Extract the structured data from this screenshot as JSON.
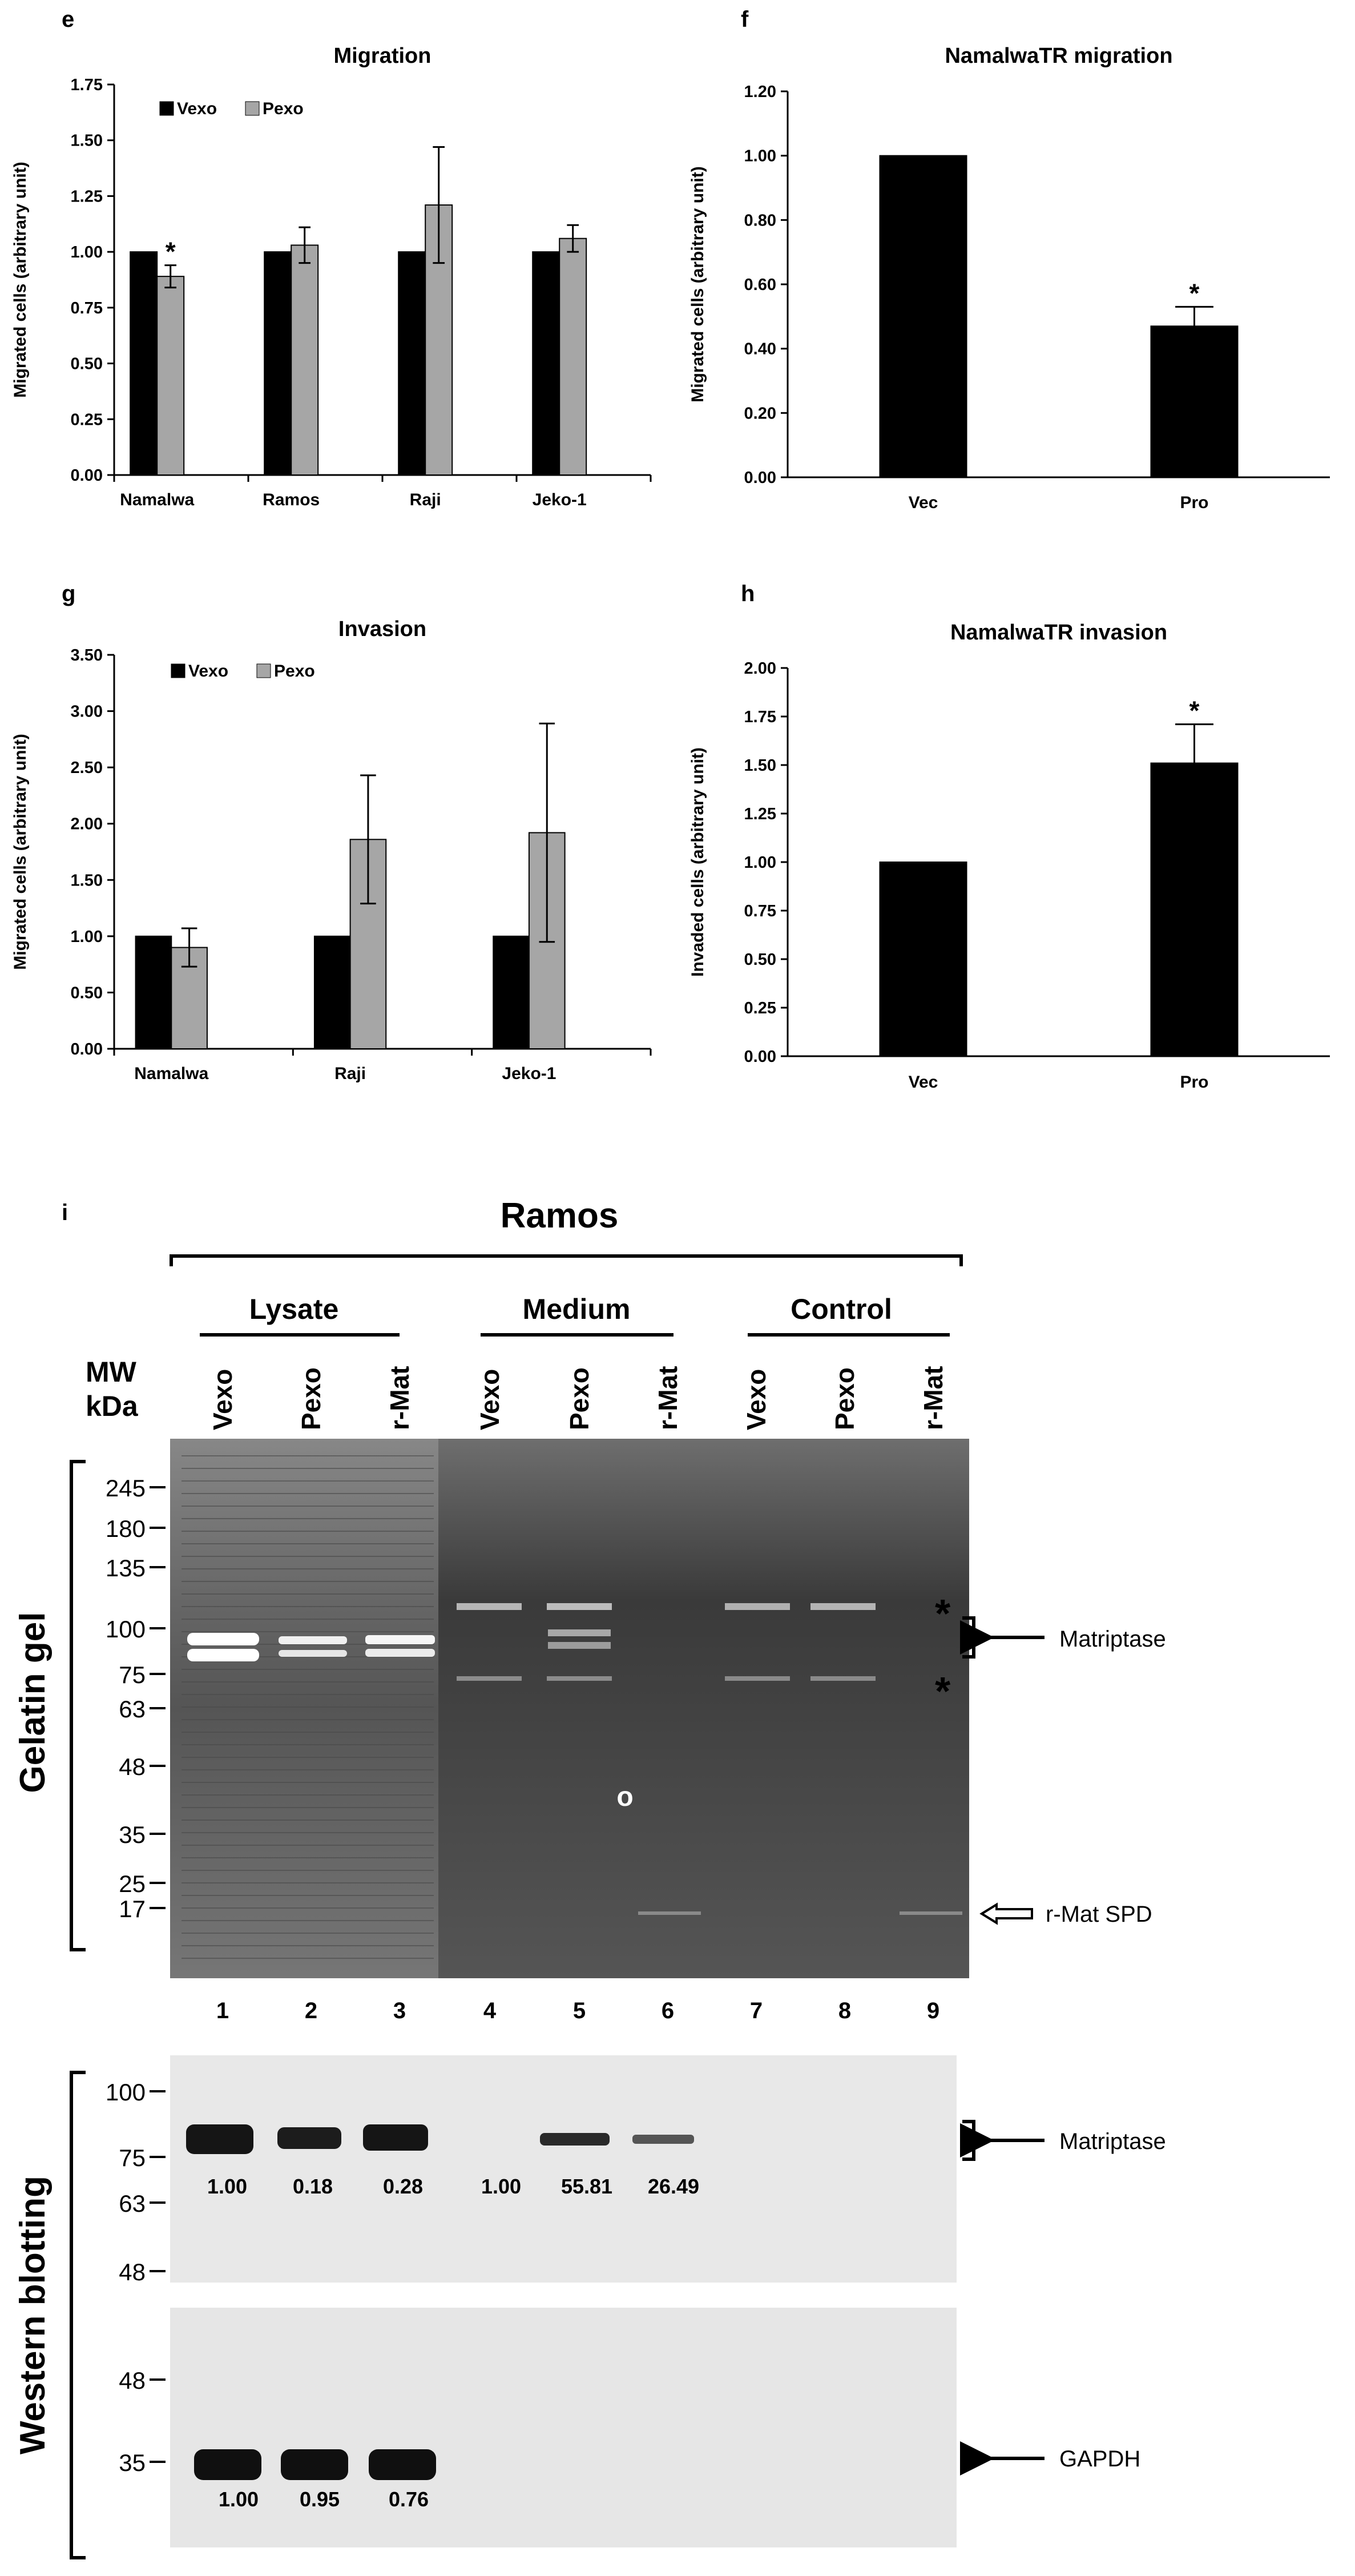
{
  "panel_labels": {
    "e": "e",
    "f": "f",
    "g": "g",
    "h": "h",
    "i": "i"
  },
  "chart_data": [
    {
      "id": "e",
      "type": "bar",
      "title": "Migration",
      "ylabel": "Migrated cells (arbitrary unit)",
      "xlabel": "",
      "ylim": [
        0,
        1.75
      ],
      "yticks": [
        "0.00",
        "0.25",
        "0.50",
        "0.75",
        "1.00",
        "1.25",
        "1.50",
        "1.75"
      ],
      "categories": [
        "Namalwa",
        "Ramos",
        "Raji",
        "Jeko-1"
      ],
      "series": [
        {
          "name": "Vexo",
          "color": "#000000",
          "values": [
            1.0,
            1.0,
            1.0,
            1.0
          ],
          "errors": [
            0,
            0,
            0,
            0
          ]
        },
        {
          "name": "Pexo",
          "color": "#a6a6a6",
          "values": [
            0.89,
            1.03,
            1.21,
            1.06
          ],
          "errors": [
            0.05,
            0.08,
            0.26,
            0.06
          ]
        }
      ],
      "annotations": [
        {
          "category": "Namalwa",
          "series": "Pexo",
          "text": "*"
        }
      ],
      "legend": "top-left",
      "grid": false
    },
    {
      "id": "f",
      "type": "bar",
      "title": "NamalwaTR migration",
      "ylabel": "Migrated cells (arbitrary unit)",
      "xlabel": "",
      "ylim": [
        0,
        1.2
      ],
      "yticks": [
        "0.00",
        "0.20",
        "0.40",
        "0.60",
        "0.80",
        "1.00",
        "1.20"
      ],
      "categories": [
        "Vec",
        "Pro"
      ],
      "series": [
        {
          "color": "#000000",
          "values": [
            1.0,
            0.47
          ],
          "errors": [
            0,
            0.06
          ]
        }
      ],
      "annotations": [
        {
          "category": "Pro",
          "text": "*"
        }
      ],
      "grid": false
    },
    {
      "id": "g",
      "type": "bar",
      "title": "Invasion",
      "ylabel": "Migrated cells (arbitrary unit)",
      "xlabel": "",
      "ylim": [
        0,
        3.5
      ],
      "yticks": [
        "0.00",
        "0.50",
        "1.00",
        "1.50",
        "2.00",
        "2.50",
        "3.00",
        "3.50"
      ],
      "categories": [
        "Namalwa",
        "Raji",
        "Jeko-1"
      ],
      "series": [
        {
          "name": "Vexo",
          "color": "#000000",
          "values": [
            1.0,
            1.0,
            1.0
          ],
          "errors": [
            0,
            0,
            0
          ]
        },
        {
          "name": "Pexo",
          "color": "#a6a6a6",
          "values": [
            0.9,
            1.86,
            1.92
          ],
          "errors": [
            0.17,
            0.57,
            0.97
          ]
        }
      ],
      "legend": "top-left",
      "grid": false
    },
    {
      "id": "h",
      "type": "bar",
      "title": "NamalwaTR invasion",
      "ylabel": "Invaded cells (arbitrary unit)",
      "xlabel": "",
      "ylim": [
        0,
        2.0
      ],
      "yticks": [
        "0.00",
        "0.25",
        "0.50",
        "0.75",
        "1.00",
        "1.25",
        "1.50",
        "1.75",
        "2.00"
      ],
      "categories": [
        "Vec",
        "Pro"
      ],
      "series": [
        {
          "color": "#000000",
          "values": [
            1.0,
            1.51
          ],
          "errors": [
            0,
            0.2
          ]
        }
      ],
      "annotations": [
        {
          "category": "Pro",
          "text": "*"
        }
      ],
      "grid": false
    }
  ],
  "blot": {
    "cell_line": "Ramos",
    "groups": [
      "Lysate",
      "Medium",
      "Control"
    ],
    "lane_headers": [
      "Vexo",
      "Pexo",
      "r-Mat",
      "Vexo",
      "Pexo",
      "r-Mat",
      "Vexo",
      "Pexo",
      "r-Mat"
    ],
    "mw_header_1": "MW",
    "mw_header_2": "kDa",
    "gel_section_label": "Gelatin gel",
    "wb_section_label": "Western blotting",
    "gel_mw": [
      "245",
      "180",
      "135",
      "100",
      "75",
      "63",
      "48",
      "35",
      "25",
      "17"
    ],
    "gel_annotations": {
      "matriptase": "Matriptase",
      "rmat": "r-Mat SPD",
      "star": "*",
      "circle": "o"
    },
    "lane_numbers": [
      "1",
      "2",
      "3",
      "4",
      "5",
      "6",
      "7",
      "8",
      "9"
    ],
    "wb1_mw": [
      "100",
      "75",
      "63",
      "48"
    ],
    "wb1_label": "Matriptase",
    "wb1_values": [
      "1.00",
      "0.18",
      "0.28",
      "1.00",
      "55.81",
      "26.49"
    ],
    "wb2_mw": [
      "48",
      "35"
    ],
    "wb2_label": "GAPDH",
    "wb2_values": [
      "1.00",
      "0.95",
      "0.76"
    ],
    "colors": {
      "gel_bg": "#3c3c3c",
      "wb_bg": "#e6e6e6",
      "pexo": "#a6a6a6"
    }
  }
}
